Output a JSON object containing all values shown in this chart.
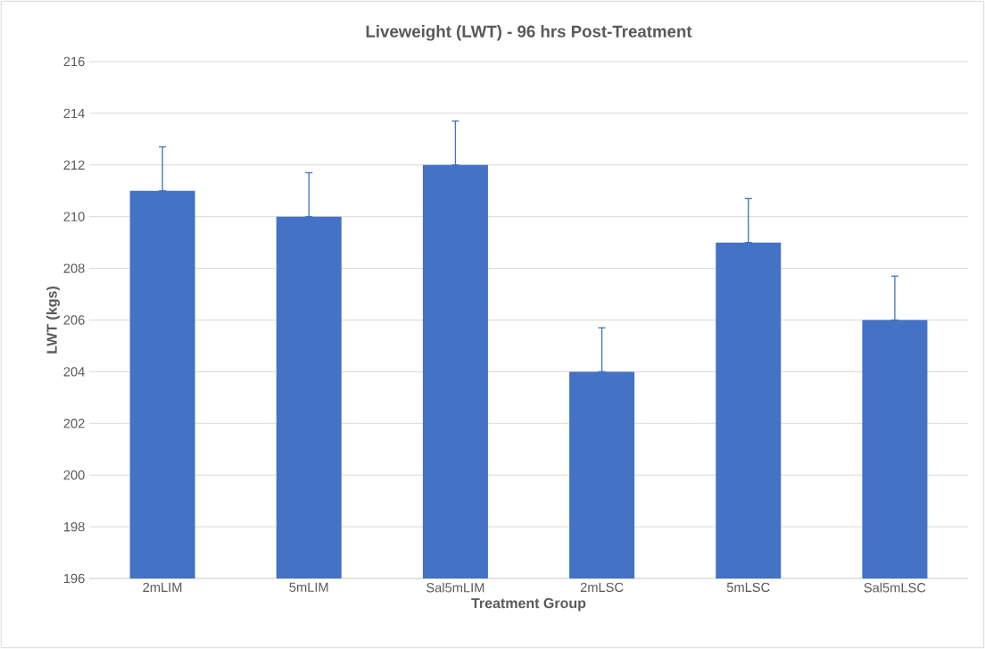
{
  "chart_data": {
    "type": "bar",
    "title": "Liveweight (LWT) - 96 hrs Post-Treatment",
    "xlabel": "Treatment Group",
    "ylabel": "LWT (kgs)",
    "categories": [
      "2mLIM",
      "5mLIM",
      "Sal5mLIM",
      "2mLSC",
      "5mLSC",
      "Sal5mLSC"
    ],
    "values": [
      211,
      210,
      212,
      204,
      209,
      206
    ],
    "errors": [
      [
        211,
        212.7
      ],
      [
        210,
        211.7
      ],
      [
        212,
        213.7
      ],
      [
        204,
        205.7
      ],
      [
        209,
        210.7
      ],
      [
        206,
        207.7
      ]
    ],
    "color": "#4472c4",
    "ylim": [
      196,
      216
    ],
    "yticks": [
      196,
      198,
      200,
      202,
      204,
      206,
      208,
      210,
      212,
      214,
      216
    ],
    "grid": "y"
  }
}
